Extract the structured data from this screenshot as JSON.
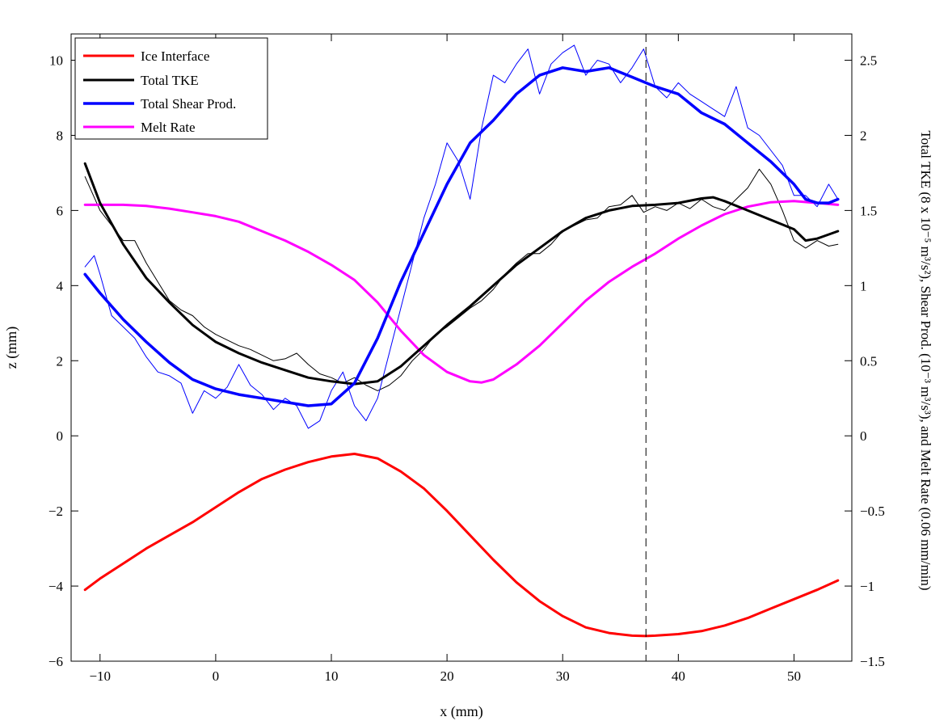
{
  "chart_data": {
    "type": "line",
    "xlabel": "x (mm)",
    "ylabel": "z (mm)",
    "ylabel_right": "Total TKE (8 x 10⁻⁵ m³/s²), Shear Prod. (10⁻³ m³/s³), and Melt Rate (0.06 mm/min)",
    "xlim": [
      -12.5,
      55
    ],
    "ylim": [
      -6,
      10.7
    ],
    "ylim_right": [
      -1.5,
      2.675
    ],
    "xticks": [
      -10,
      0,
      10,
      20,
      30,
      40,
      50
    ],
    "yticks": [
      -6,
      -4,
      -2,
      0,
      2,
      4,
      6,
      8,
      10
    ],
    "yticks_right": [
      -1.5,
      -1,
      -0.5,
      0,
      0.5,
      1,
      1.5,
      2,
      2.5
    ],
    "vline_x": 37.2,
    "legend_position": "top-left",
    "grid": false,
    "series": [
      {
        "name": "Ice Interface",
        "color": "#ff0000",
        "width": 3,
        "x": [
          -11.3,
          -10,
          -8,
          -6,
          -4,
          -2,
          0,
          2,
          4,
          6,
          8,
          10,
          12,
          14,
          16,
          18,
          20,
          22,
          24,
          26,
          28,
          30,
          32,
          34,
          36,
          37.2,
          38,
          40,
          42,
          44,
          46,
          48,
          50,
          52,
          53.8
        ],
        "y": [
          -4.1,
          -3.8,
          -3.4,
          -3.0,
          -2.65,
          -2.3,
          -1.9,
          -1.5,
          -1.15,
          -0.9,
          -0.7,
          -0.55,
          -0.48,
          -0.6,
          -0.95,
          -1.4,
          -2.0,
          -2.65,
          -3.3,
          -3.9,
          -4.4,
          -4.8,
          -5.1,
          -5.25,
          -5.32,
          -5.33,
          -5.32,
          -5.28,
          -5.2,
          -5.05,
          -4.85,
          -4.6,
          -4.35,
          -4.1,
          -3.85
        ]
      },
      {
        "name": "Total TKE",
        "color": "#000000",
        "width": 3,
        "x": [
          -11.3,
          -10,
          -8,
          -6,
          -4,
          -2,
          0,
          2,
          4,
          6,
          8,
          10,
          12,
          14,
          16,
          18,
          20,
          22,
          24,
          26,
          28,
          30,
          32,
          34,
          36,
          38,
          40,
          42,
          43,
          44,
          46,
          48,
          50,
          51,
          52,
          53.8
        ],
        "y": [
          7.25,
          6.2,
          5.1,
          4.2,
          3.55,
          2.95,
          2.5,
          2.2,
          1.95,
          1.75,
          1.55,
          1.45,
          1.38,
          1.45,
          1.85,
          2.4,
          2.95,
          3.45,
          4.0,
          4.55,
          5.0,
          5.45,
          5.8,
          6.0,
          6.12,
          6.15,
          6.2,
          6.32,
          6.35,
          6.25,
          6.0,
          5.75,
          5.5,
          5.2,
          5.25,
          5.45
        ]
      },
      {
        "name": "Total TKE (raw)",
        "color": "#000000",
        "width": 1,
        "x": [
          -11.3,
          -10,
          -9,
          -8,
          -7,
          -6,
          -5,
          -4,
          -3,
          -2,
          -1,
          0,
          1,
          2,
          3,
          4,
          5,
          6,
          7,
          8,
          9,
          10,
          11,
          12,
          13,
          14,
          15,
          16,
          17,
          18,
          19,
          20,
          21,
          22,
          23,
          24,
          25,
          26,
          27,
          28,
          29,
          30,
          31,
          32,
          33,
          34,
          35,
          36,
          37,
          38,
          39,
          40,
          41,
          42,
          43,
          44,
          45,
          46,
          47,
          48,
          49,
          50,
          51,
          52,
          53,
          53.8
        ],
        "y": [
          6.9,
          6.0,
          5.6,
          5.2,
          5.2,
          4.6,
          4.1,
          3.6,
          3.35,
          3.2,
          2.9,
          2.7,
          2.55,
          2.4,
          2.3,
          2.15,
          2.0,
          2.05,
          2.2,
          1.9,
          1.65,
          1.55,
          1.4,
          1.55,
          1.35,
          1.2,
          1.35,
          1.6,
          2.0,
          2.3,
          2.7,
          2.9,
          3.15,
          3.4,
          3.6,
          3.9,
          4.3,
          4.6,
          4.85,
          4.85,
          5.1,
          5.45,
          5.6,
          5.75,
          5.8,
          6.1,
          6.15,
          6.4,
          5.95,
          6.1,
          6.0,
          6.2,
          6.05,
          6.3,
          6.1,
          6.0,
          6.3,
          6.6,
          7.1,
          6.7,
          6.0,
          5.2,
          5.0,
          5.2,
          5.05,
          5.1
        ]
      },
      {
        "name": "Total Shear Prod.",
        "color": "#0000ff",
        "width": 3.5,
        "x": [
          -11.3,
          -10,
          -8,
          -6,
          -4,
          -2,
          0,
          2,
          4,
          6,
          8,
          10,
          12,
          14,
          16,
          18,
          20,
          22,
          24,
          26,
          28,
          30,
          32,
          34,
          36,
          38,
          40,
          42,
          44,
          46,
          48,
          50,
          51,
          52,
          53,
          53.8
        ],
        "y": [
          4.3,
          3.8,
          3.1,
          2.5,
          1.95,
          1.5,
          1.25,
          1.1,
          1.0,
          0.9,
          0.8,
          0.85,
          1.4,
          2.6,
          4.1,
          5.4,
          6.7,
          7.8,
          8.4,
          9.1,
          9.6,
          9.8,
          9.7,
          9.8,
          9.55,
          9.3,
          9.1,
          8.6,
          8.3,
          7.8,
          7.3,
          6.7,
          6.3,
          6.2,
          6.2,
          6.3
        ]
      },
      {
        "name": "Total Shear Prod. (raw)",
        "color": "#0000ff",
        "width": 1,
        "x": [
          -11.3,
          -10.5,
          -10,
          -9,
          -8,
          -7,
          -6,
          -5,
          -4,
          -3,
          -2,
          -1,
          0,
          1,
          2,
          3,
          4,
          5,
          6,
          7,
          8,
          9,
          10,
          11,
          12,
          13,
          14,
          15,
          16,
          17,
          18,
          19,
          20,
          21,
          22,
          23,
          24,
          25,
          26,
          27,
          28,
          29,
          30,
          31,
          32,
          33,
          34,
          35,
          36,
          37,
          38,
          39,
          40,
          41,
          42,
          43,
          44,
          45,
          46,
          47,
          48,
          49,
          50,
          51,
          52,
          53,
          53.8
        ],
        "y": [
          4.5,
          4.8,
          4.3,
          3.2,
          2.9,
          2.6,
          2.1,
          1.7,
          1.6,
          1.4,
          0.6,
          1.2,
          1.0,
          1.3,
          1.9,
          1.35,
          1.1,
          0.7,
          1.0,
          0.8,
          0.2,
          0.4,
          1.2,
          1.7,
          0.8,
          0.4,
          1.0,
          2.2,
          3.4,
          4.6,
          5.8,
          6.7,
          7.8,
          7.3,
          6.3,
          8.2,
          9.6,
          9.4,
          9.9,
          10.3,
          9.1,
          9.9,
          10.2,
          10.4,
          9.6,
          10.0,
          9.9,
          9.4,
          9.8,
          10.3,
          9.3,
          9.0,
          9.4,
          9.1,
          8.9,
          8.7,
          8.5,
          9.3,
          8.2,
          8.0,
          7.6,
          7.2,
          6.4,
          6.4,
          6.1,
          6.7,
          6.3
        ]
      },
      {
        "name": "Melt Rate",
        "color": "#ff00ff",
        "width": 3,
        "x": [
          -11.3,
          -8,
          -6,
          -4,
          -2,
          0,
          2,
          4,
          6,
          8,
          10,
          12,
          14,
          16,
          18,
          20,
          22,
          23,
          24,
          26,
          28,
          30,
          32,
          34,
          36,
          38,
          40,
          42,
          44,
          46,
          48,
          50,
          52,
          53.8
        ],
        "y": [
          6.15,
          6.15,
          6.12,
          6.05,
          5.95,
          5.85,
          5.7,
          5.45,
          5.2,
          4.9,
          4.55,
          4.15,
          3.55,
          2.8,
          2.15,
          1.7,
          1.45,
          1.42,
          1.5,
          1.9,
          2.4,
          3.0,
          3.6,
          4.1,
          4.5,
          4.85,
          5.25,
          5.6,
          5.9,
          6.1,
          6.22,
          6.25,
          6.2,
          6.15
        ]
      }
    ],
    "legend": [
      "Ice Interface",
      "Total TKE",
      "Total Shear Prod.",
      "Melt Rate"
    ]
  }
}
